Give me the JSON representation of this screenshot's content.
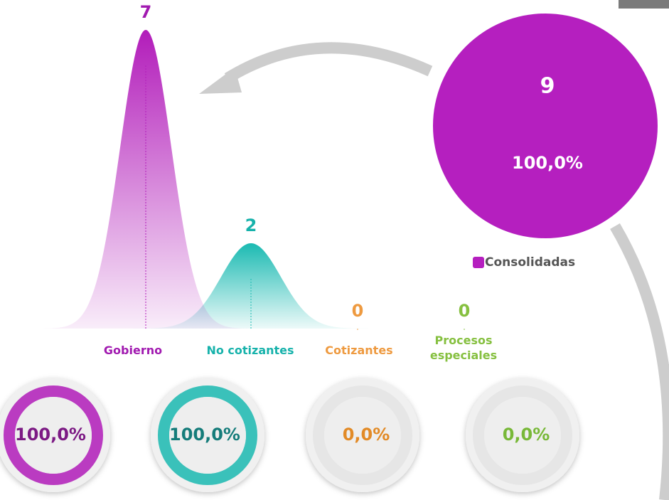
{
  "chart_data": {
    "type": "peak",
    "categories": [
      "Gobierno",
      "No cotizantes",
      "Cotizantes",
      "Procesos especiales"
    ],
    "values": [
      7,
      2,
      0,
      0
    ],
    "colors": [
      "#b21cba",
      "#1bbab2",
      "#f0a24e",
      "#8cc44c"
    ],
    "text_colors": [
      "#a11ab0",
      "#17b2ab",
      "#ee9a40",
      "#86c040"
    ],
    "percent_colors": [
      "#7c1a84",
      "#157c7a",
      "#e28a26",
      "#78b838"
    ],
    "percentages": [
      100,
      100,
      0,
      0
    ],
    "percentage_labels": [
      "100,0%",
      "100,0%",
      "0,0%",
      "0,0%"
    ],
    "total": 9,
    "total_percentage": 100,
    "total_percentage_label": "100,0%",
    "total_color": "#b51fbf",
    "legend": "Consolidadas"
  }
}
